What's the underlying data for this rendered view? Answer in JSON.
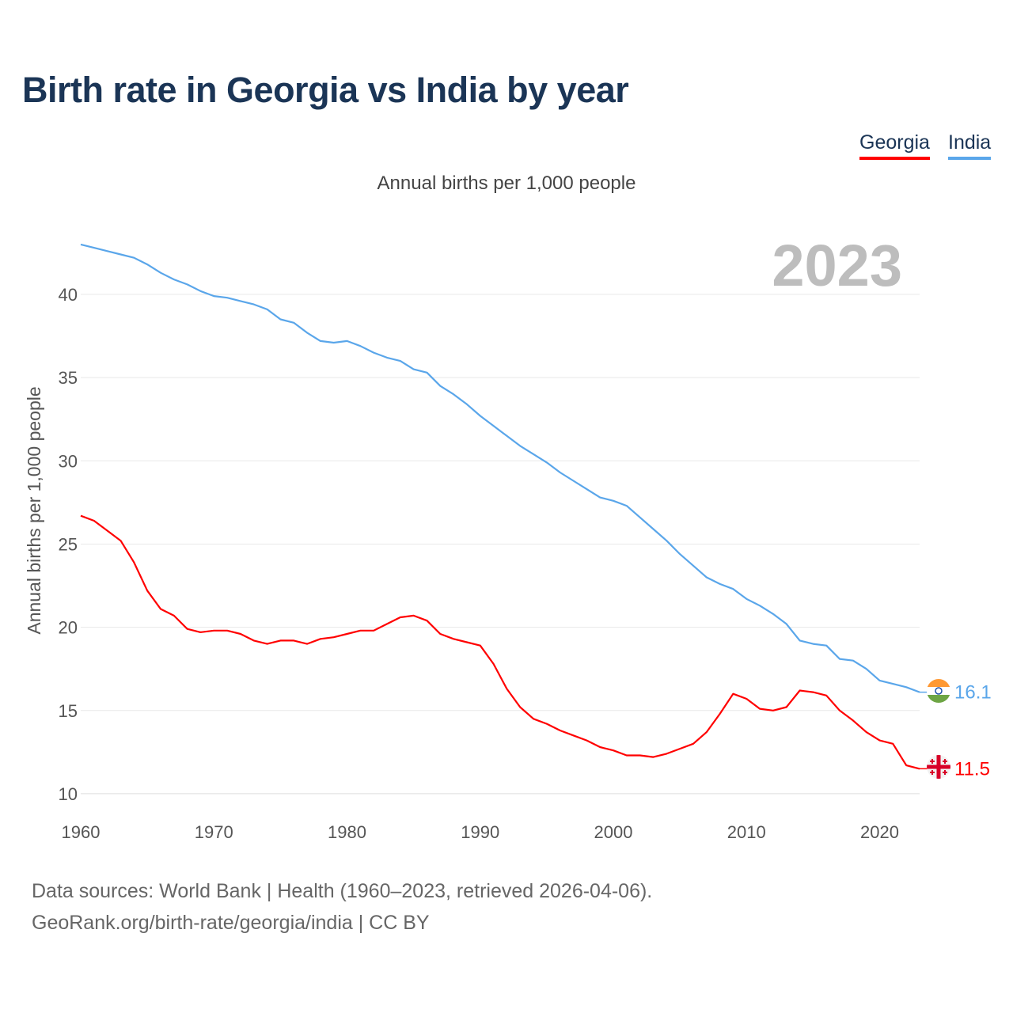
{
  "title": "Birth rate in Georgia vs India by year",
  "legend": {
    "georgia": "Georgia",
    "india": "India"
  },
  "subtitle": "Annual births per 1,000 people",
  "year_badge": "2023",
  "sources": {
    "line1": "Data sources: World Bank | Health (1960–2023, retrieved 2026-04-06).",
    "line2": "GeoRank.org/birth-rate/georgia/india | CC BY"
  },
  "colors": {
    "georgia": "#ff0000",
    "india": "#5aa6ea"
  },
  "chart_data": {
    "type": "line",
    "title": "Birth rate in Georgia vs India by year",
    "xlabel": "",
    "ylabel": "Annual births per 1,000 people",
    "xlim": [
      1960,
      2023
    ],
    "ylim": [
      10,
      43
    ],
    "xticks": [
      1960,
      1970,
      1980,
      1990,
      2000,
      2010,
      2020
    ],
    "yticks": [
      10,
      15,
      20,
      25,
      30,
      35,
      40
    ],
    "grid": true,
    "legend_position": "top-right",
    "x": [
      1960,
      1961,
      1962,
      1963,
      1964,
      1965,
      1966,
      1967,
      1968,
      1969,
      1970,
      1971,
      1972,
      1973,
      1974,
      1975,
      1976,
      1977,
      1978,
      1979,
      1980,
      1981,
      1982,
      1983,
      1984,
      1985,
      1986,
      1987,
      1988,
      1989,
      1990,
      1991,
      1992,
      1993,
      1994,
      1995,
      1996,
      1997,
      1998,
      1999,
      2000,
      2001,
      2002,
      2003,
      2004,
      2005,
      2006,
      2007,
      2008,
      2009,
      2010,
      2011,
      2012,
      2013,
      2014,
      2015,
      2016,
      2017,
      2018,
      2019,
      2020,
      2021,
      2022,
      2023
    ],
    "series": [
      {
        "name": "Georgia",
        "end_label": "11.5",
        "flag": "georgia-flag",
        "values": [
          26.7,
          26.4,
          25.8,
          25.2,
          23.9,
          22.2,
          21.1,
          20.7,
          19.9,
          19.7,
          19.8,
          19.8,
          19.6,
          19.2,
          19.0,
          19.2,
          19.2,
          19.0,
          19.3,
          19.4,
          19.6,
          19.8,
          19.8,
          20.2,
          20.6,
          20.7,
          20.4,
          19.6,
          19.3,
          19.1,
          18.9,
          17.8,
          16.3,
          15.2,
          14.5,
          14.2,
          13.8,
          13.5,
          13.2,
          12.8,
          12.6,
          12.3,
          12.3,
          12.2,
          12.4,
          12.7,
          13.0,
          13.7,
          14.8,
          16.0,
          15.7,
          15.1,
          15.0,
          15.2,
          16.2,
          16.1,
          15.9,
          15.0,
          14.4,
          13.7,
          13.2,
          13.0,
          11.7,
          11.5
        ]
      },
      {
        "name": "India",
        "end_label": "16.1",
        "flag": "india-flag",
        "values": [
          43.0,
          42.8,
          42.6,
          42.4,
          42.2,
          41.8,
          41.3,
          40.9,
          40.6,
          40.2,
          39.9,
          39.8,
          39.6,
          39.4,
          39.1,
          38.5,
          38.3,
          37.7,
          37.2,
          37.1,
          37.2,
          36.9,
          36.5,
          36.2,
          36.0,
          35.5,
          35.3,
          34.5,
          34.0,
          33.4,
          32.7,
          32.1,
          31.5,
          30.9,
          30.4,
          29.9,
          29.3,
          28.8,
          28.3,
          27.8,
          27.6,
          27.3,
          26.6,
          25.9,
          25.2,
          24.4,
          23.7,
          23.0,
          22.6,
          22.3,
          21.7,
          21.3,
          20.8,
          20.2,
          19.2,
          19.0,
          18.9,
          18.1,
          18.0,
          17.5,
          16.8,
          16.6,
          16.4,
          16.1
        ]
      }
    ]
  }
}
